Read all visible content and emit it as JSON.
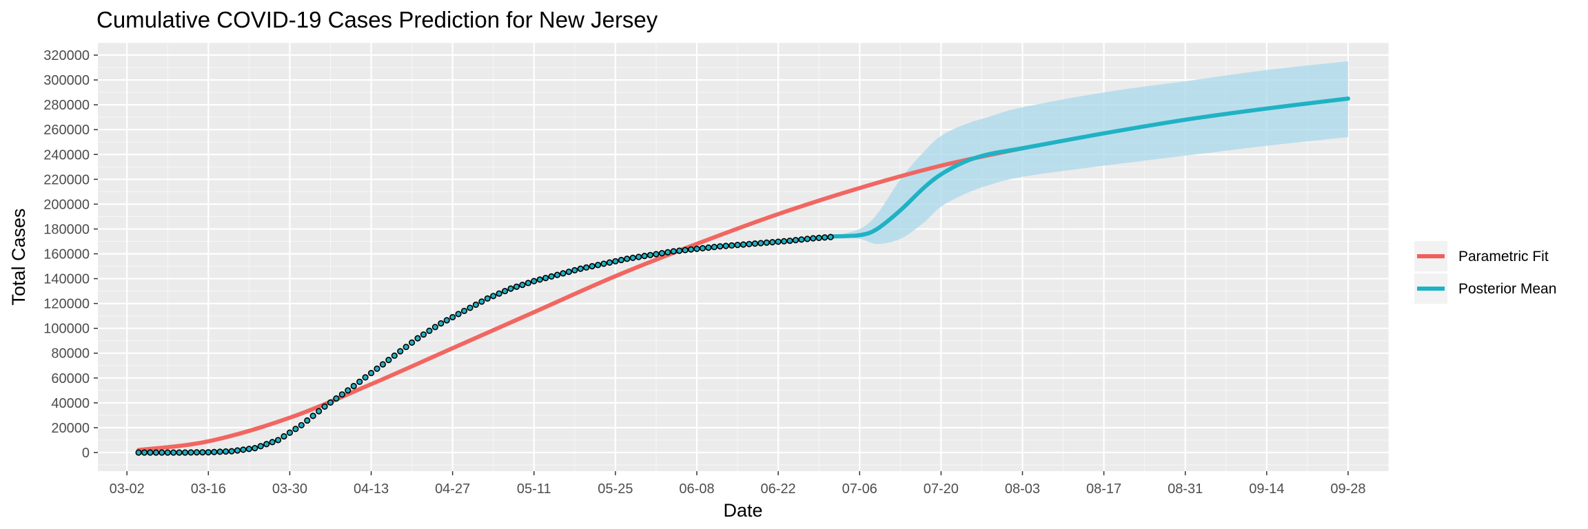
{
  "chart_data": {
    "type": "line",
    "title": "Cumulative COVID-19 Cases Prediction for New Jersey",
    "xlabel": "Date",
    "ylabel": "Total Cases",
    "x_ticks": [
      "03-02",
      "03-16",
      "03-30",
      "04-13",
      "04-27",
      "05-11",
      "05-25",
      "06-08",
      "06-22",
      "07-06",
      "07-20",
      "08-03",
      "08-17",
      "08-31",
      "09-14",
      "09-28"
    ],
    "xlim": [
      "2020-02-26",
      "2020-10-05"
    ],
    "ylim": [
      -15000,
      330000
    ],
    "y_ticks": [
      0,
      20000,
      40000,
      60000,
      80000,
      100000,
      120000,
      140000,
      160000,
      180000,
      200000,
      220000,
      240000,
      260000,
      280000,
      300000,
      320000
    ],
    "legend": {
      "position": "right",
      "entries": [
        {
          "name": "Parametric Fit",
          "color": "#f15f5a"
        },
        {
          "name": "Posterior Mean",
          "color": "#1fb2c4"
        }
      ]
    },
    "colors": {
      "panel": "#ebebeb",
      "grid_major": "#ffffff",
      "ribbon": "#aad8eb",
      "points_fill": "#1fb2c4",
      "points_stroke": "#000000"
    },
    "series": [
      {
        "name": "Parametric Fit",
        "type": "line",
        "x": [
          "2020-03-04",
          "2020-03-16",
          "2020-03-30",
          "2020-04-13",
          "2020-04-27",
          "2020-05-11",
          "2020-05-25",
          "2020-06-08",
          "2020-06-22",
          "2020-07-06",
          "2020-07-20",
          "2020-08-03"
        ],
        "y": [
          2000,
          9000,
          28000,
          55000,
          84000,
          113000,
          142000,
          168000,
          192000,
          213000,
          231000,
          245000
        ]
      },
      {
        "name": "Posterior Mean",
        "type": "line",
        "x": [
          "2020-07-01",
          "2020-07-06",
          "2020-07-09",
          "2020-07-13",
          "2020-07-17",
          "2020-07-20",
          "2020-07-24",
          "2020-07-28",
          "2020-08-03",
          "2020-08-17",
          "2020-08-31",
          "2020-09-14",
          "2020-09-28"
        ],
        "y": [
          174000,
          175000,
          180000,
          195000,
          213000,
          224000,
          234000,
          240000,
          245000,
          257000,
          268000,
          277000,
          285000
        ]
      },
      {
        "name": "Posterior Interval",
        "type": "area",
        "x": [
          "2020-07-01",
          "2020-07-06",
          "2020-07-09",
          "2020-07-13",
          "2020-07-17",
          "2020-07-20",
          "2020-07-24",
          "2020-07-28",
          "2020-08-03",
          "2020-08-17",
          "2020-08-31",
          "2020-09-14",
          "2020-09-28"
        ],
        "lower": [
          174000,
          172000,
          168000,
          172000,
          185000,
          198000,
          208000,
          215000,
          222000,
          231000,
          239000,
          247000,
          254000
        ],
        "upper": [
          174000,
          180000,
          192000,
          220000,
          242000,
          255000,
          264000,
          270000,
          278000,
          290000,
          299000,
          308000,
          315000
        ]
      },
      {
        "name": "Observed",
        "type": "scatter",
        "x": [
          "2020-03-04",
          "2020-03-08",
          "2020-03-12",
          "2020-03-16",
          "2020-03-20",
          "2020-03-24",
          "2020-03-28",
          "2020-04-01",
          "2020-04-05",
          "2020-04-09",
          "2020-04-13",
          "2020-04-17",
          "2020-04-21",
          "2020-04-25",
          "2020-04-29",
          "2020-05-03",
          "2020-05-07",
          "2020-05-11",
          "2020-05-15",
          "2020-05-19",
          "2020-05-23",
          "2020-05-27",
          "2020-05-31",
          "2020-06-04",
          "2020-06-08",
          "2020-06-12",
          "2020-06-16",
          "2020-06-20",
          "2020-06-24",
          "2020-06-28",
          "2020-07-01"
        ],
        "y": [
          0,
          0,
          0,
          200,
          1000,
          3500,
          10000,
          22000,
          37000,
          50000,
          64000,
          78000,
          92000,
          104000,
          114000,
          124000,
          132000,
          138000,
          143000,
          148000,
          152000,
          156000,
          159000,
          162000,
          164000,
          166000,
          167500,
          169000,
          170500,
          172500,
          173500
        ]
      }
    ]
  }
}
